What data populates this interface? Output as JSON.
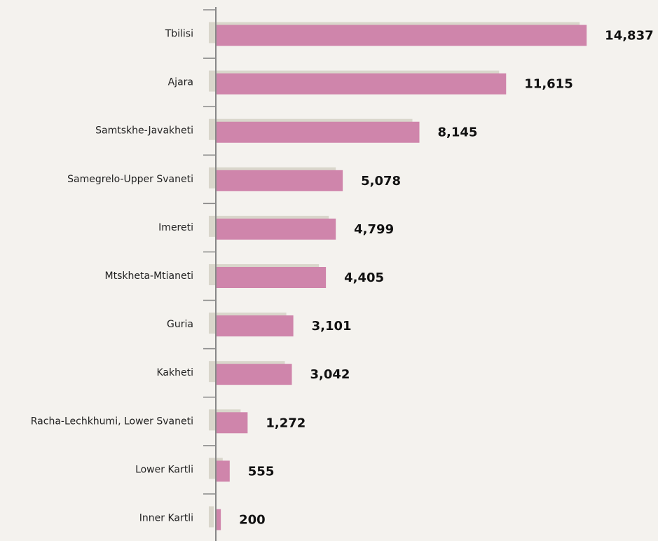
{
  "chart_data": {
    "type": "bar",
    "orientation": "horizontal",
    "categories": [
      "Tbilisi",
      "Ajara",
      "Samtskhe-Javakheti",
      "Samegrelo-Upper Svaneti",
      "Imereti",
      "Mtskheta-Mtianeti",
      "Guria",
      "Kakheti",
      "Racha-Lechkhumi, Lower Svaneti",
      "Lower Kartli",
      "Inner Kartli"
    ],
    "values": [
      14837,
      11615,
      8145,
      5078,
      4799,
      4405,
      3101,
      3042,
      1272,
      555,
      200
    ],
    "value_labels": [
      "14,837",
      "11,615",
      "8,145",
      "5,078",
      "4,799",
      "4,405",
      "3,101",
      "3,042",
      "1,272",
      "555",
      "200"
    ],
    "color": "#cf85ab",
    "shadow_color": "#d9d6cb",
    "xlim": [
      0,
      15000
    ]
  }
}
